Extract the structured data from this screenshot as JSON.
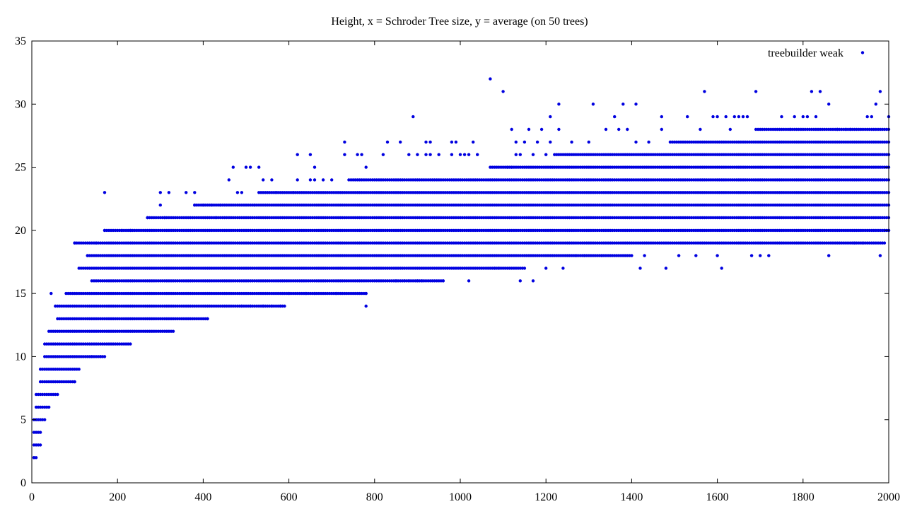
{
  "chart_data": {
    "type": "scatter",
    "title": "Height, x = Schroder Tree size, y = average (on 50 trees)",
    "xlabel": "",
    "ylabel": "",
    "xlim": [
      0,
      2000
    ],
    "ylim": [
      0,
      35
    ],
    "x_ticks": [
      0,
      200,
      400,
      600,
      800,
      1000,
      1200,
      1400,
      1600,
      1800,
      2000
    ],
    "y_ticks": [
      0,
      5,
      10,
      15,
      20,
      25,
      30,
      35
    ],
    "grid": false,
    "legend_position": "top-right",
    "series": [
      {
        "name": "treebuilder weak",
        "color": "#0000e0",
        "bands": [
          {
            "y": 2,
            "x_from": 5,
            "x_to": 10,
            "step": 5
          },
          {
            "y": 3,
            "x_from": 5,
            "x_to": 20,
            "step": 5
          },
          {
            "y": 4,
            "x_from": 5,
            "x_to": 20,
            "step": 5
          },
          {
            "y": 5,
            "x_from": 5,
            "x_to": 30,
            "step": 5
          },
          {
            "y": 6,
            "x_from": 10,
            "x_to": 40,
            "step": 5
          },
          {
            "y": 7,
            "x_from": 10,
            "x_to": 60,
            "step": 5
          },
          {
            "y": 8,
            "x_from": 20,
            "x_to": 100,
            "step": 5
          },
          {
            "y": 9,
            "x_from": 20,
            "x_to": 110,
            "step": 5
          },
          {
            "y": 10,
            "x_from": 30,
            "x_to": 170,
            "step": 5
          },
          {
            "y": 11,
            "x_from": 30,
            "x_to": 230,
            "step": 5
          },
          {
            "y": 12,
            "x_from": 40,
            "x_to": 330,
            "step": 5
          },
          {
            "y": 13,
            "x_from": 60,
            "x_to": 410,
            "step": 5
          },
          {
            "y": 14,
            "x_from": 60,
            "x_to": 590,
            "step": 5
          },
          {
            "y": 15,
            "x_from": 80,
            "x_to": 780,
            "step": 5
          },
          {
            "y": 16,
            "x_from": 140,
            "x_to": 960,
            "step": 5
          },
          {
            "y": 17,
            "x_from": 110,
            "x_to": 1150,
            "step": 5
          },
          {
            "y": 18,
            "x_from": 130,
            "x_to": 1400,
            "step": 5
          },
          {
            "y": 19,
            "x_from": 100,
            "x_to": 1990,
            "step": 5
          },
          {
            "y": 20,
            "x_from": 170,
            "x_to": 2000,
            "step": 5
          },
          {
            "y": 21,
            "x_from": 270,
            "x_to": 2000,
            "step": 5
          },
          {
            "y": 22,
            "x_from": 380,
            "x_to": 2000,
            "step": 5
          },
          {
            "y": 23,
            "x_from": 530,
            "x_to": 2000,
            "step": 5
          },
          {
            "y": 24,
            "x_from": 740,
            "x_to": 2000,
            "step": 5
          },
          {
            "y": 25,
            "x_from": 1070,
            "x_to": 2000,
            "step": 5
          },
          {
            "y": 26,
            "x_from": 1220,
            "x_to": 2000,
            "step": 5
          },
          {
            "y": 27,
            "x_from": 1490,
            "x_to": 2000,
            "step": 5
          },
          {
            "y": 28,
            "x_from": 1690,
            "x_to": 2000,
            "step": 5
          }
        ],
        "scatter": [
          {
            "x": 5,
            "y": 2
          },
          {
            "x": 45,
            "y": 15
          },
          {
            "x": 55,
            "y": 14
          },
          {
            "x": 100,
            "y": 8
          },
          {
            "x": 140,
            "y": 10
          },
          {
            "x": 160,
            "y": 10
          },
          {
            "x": 170,
            "y": 23
          },
          {
            "x": 170,
            "y": 20
          },
          {
            "x": 100,
            "y": 19
          },
          {
            "x": 130,
            "y": 18
          },
          {
            "x": 150,
            "y": 19
          },
          {
            "x": 210,
            "y": 20
          },
          {
            "x": 230,
            "y": 20
          },
          {
            "x": 270,
            "y": 21
          },
          {
            "x": 300,
            "y": 23
          },
          {
            "x": 300,
            "y": 22
          },
          {
            "x": 310,
            "y": 21
          },
          {
            "x": 320,
            "y": 23
          },
          {
            "x": 360,
            "y": 23
          },
          {
            "x": 380,
            "y": 23
          },
          {
            "x": 380,
            "y": 22
          },
          {
            "x": 400,
            "y": 22
          },
          {
            "x": 410,
            "y": 13
          },
          {
            "x": 420,
            "y": 22
          },
          {
            "x": 430,
            "y": 21
          },
          {
            "x": 440,
            "y": 22
          },
          {
            "x": 460,
            "y": 24
          },
          {
            "x": 470,
            "y": 25
          },
          {
            "x": 480,
            "y": 23
          },
          {
            "x": 490,
            "y": 23
          },
          {
            "x": 500,
            "y": 25
          },
          {
            "x": 510,
            "y": 25
          },
          {
            "x": 520,
            "y": 22
          },
          {
            "x": 530,
            "y": 25
          },
          {
            "x": 540,
            "y": 24
          },
          {
            "x": 560,
            "y": 24
          },
          {
            "x": 570,
            "y": 23
          },
          {
            "x": 490,
            "y": 14
          },
          {
            "x": 510,
            "y": 14
          },
          {
            "x": 540,
            "y": 14
          },
          {
            "x": 560,
            "y": 14
          },
          {
            "x": 580,
            "y": 14
          },
          {
            "x": 600,
            "y": 15
          },
          {
            "x": 610,
            "y": 23
          },
          {
            "x": 620,
            "y": 26
          },
          {
            "x": 620,
            "y": 24
          },
          {
            "x": 640,
            "y": 15
          },
          {
            "x": 650,
            "y": 26
          },
          {
            "x": 650,
            "y": 24
          },
          {
            "x": 660,
            "y": 24
          },
          {
            "x": 660,
            "y": 25
          },
          {
            "x": 660,
            "y": 15
          },
          {
            "x": 680,
            "y": 24
          },
          {
            "x": 700,
            "y": 24
          },
          {
            "x": 710,
            "y": 15
          },
          {
            "x": 730,
            "y": 27
          },
          {
            "x": 730,
            "y": 26
          },
          {
            "x": 760,
            "y": 26
          },
          {
            "x": 770,
            "y": 26
          },
          {
            "x": 780,
            "y": 25
          },
          {
            "x": 780,
            "y": 15
          },
          {
            "x": 780,
            "y": 14
          },
          {
            "x": 820,
            "y": 26
          },
          {
            "x": 830,
            "y": 27
          },
          {
            "x": 850,
            "y": 16
          },
          {
            "x": 860,
            "y": 27
          },
          {
            "x": 870,
            "y": 16
          },
          {
            "x": 880,
            "y": 16
          },
          {
            "x": 880,
            "y": 26
          },
          {
            "x": 890,
            "y": 29
          },
          {
            "x": 900,
            "y": 26
          },
          {
            "x": 900,
            "y": 16
          },
          {
            "x": 910,
            "y": 16
          },
          {
            "x": 920,
            "y": 27
          },
          {
            "x": 920,
            "y": 26
          },
          {
            "x": 930,
            "y": 27
          },
          {
            "x": 930,
            "y": 26
          },
          {
            "x": 950,
            "y": 26
          },
          {
            "x": 960,
            "y": 16
          },
          {
            "x": 980,
            "y": 26
          },
          {
            "x": 980,
            "y": 27
          },
          {
            "x": 990,
            "y": 27
          },
          {
            "x": 1000,
            "y": 26
          },
          {
            "x": 1010,
            "y": 26
          },
          {
            "x": 1020,
            "y": 26
          },
          {
            "x": 1020,
            "y": 16
          },
          {
            "x": 1030,
            "y": 27
          },
          {
            "x": 1040,
            "y": 26
          },
          {
            "x": 1070,
            "y": 32
          },
          {
            "x": 1080,
            "y": 17
          },
          {
            "x": 1090,
            "y": 17
          },
          {
            "x": 1100,
            "y": 31
          },
          {
            "x": 1110,
            "y": 25
          },
          {
            "x": 1120,
            "y": 25
          },
          {
            "x": 1120,
            "y": 28
          },
          {
            "x": 1130,
            "y": 27
          },
          {
            "x": 1130,
            "y": 26
          },
          {
            "x": 1140,
            "y": 26
          },
          {
            "x": 1140,
            "y": 16
          },
          {
            "x": 1150,
            "y": 27
          },
          {
            "x": 1160,
            "y": 28
          },
          {
            "x": 1170,
            "y": 26
          },
          {
            "x": 1170,
            "y": 16
          },
          {
            "x": 1180,
            "y": 27
          },
          {
            "x": 1190,
            "y": 28
          },
          {
            "x": 1200,
            "y": 26
          },
          {
            "x": 1200,
            "y": 17
          },
          {
            "x": 1210,
            "y": 29
          },
          {
            "x": 1210,
            "y": 27
          },
          {
            "x": 1230,
            "y": 30
          },
          {
            "x": 1230,
            "y": 28
          },
          {
            "x": 1240,
            "y": 17
          },
          {
            "x": 1260,
            "y": 27
          },
          {
            "x": 1270,
            "y": 18
          },
          {
            "x": 1290,
            "y": 18
          },
          {
            "x": 1300,
            "y": 27
          },
          {
            "x": 1310,
            "y": 30
          },
          {
            "x": 1330,
            "y": 18
          },
          {
            "x": 1340,
            "y": 28
          },
          {
            "x": 1360,
            "y": 29
          },
          {
            "x": 1370,
            "y": 28
          },
          {
            "x": 1380,
            "y": 30
          },
          {
            "x": 1390,
            "y": 28
          },
          {
            "x": 1410,
            "y": 30
          },
          {
            "x": 1410,
            "y": 27
          },
          {
            "x": 1420,
            "y": 17
          },
          {
            "x": 1430,
            "y": 18
          },
          {
            "x": 1440,
            "y": 27
          },
          {
            "x": 1470,
            "y": 29
          },
          {
            "x": 1470,
            "y": 28
          },
          {
            "x": 1480,
            "y": 17
          },
          {
            "x": 1510,
            "y": 18
          },
          {
            "x": 1530,
            "y": 29
          },
          {
            "x": 1550,
            "y": 18
          },
          {
            "x": 1560,
            "y": 28
          },
          {
            "x": 1570,
            "y": 31
          },
          {
            "x": 1590,
            "y": 29
          },
          {
            "x": 1600,
            "y": 29
          },
          {
            "x": 1600,
            "y": 18
          },
          {
            "x": 1610,
            "y": 17
          },
          {
            "x": 1620,
            "y": 29
          },
          {
            "x": 1630,
            "y": 28
          },
          {
            "x": 1640,
            "y": 29
          },
          {
            "x": 1650,
            "y": 29
          },
          {
            "x": 1660,
            "y": 29
          },
          {
            "x": 1670,
            "y": 29
          },
          {
            "x": 1680,
            "y": 18
          },
          {
            "x": 1690,
            "y": 31
          },
          {
            "x": 1700,
            "y": 18
          },
          {
            "x": 1720,
            "y": 18
          },
          {
            "x": 1750,
            "y": 29
          },
          {
            "x": 1770,
            "y": 28
          },
          {
            "x": 1780,
            "y": 29
          },
          {
            "x": 1800,
            "y": 29
          },
          {
            "x": 1810,
            "y": 29
          },
          {
            "x": 1820,
            "y": 31
          },
          {
            "x": 1830,
            "y": 29
          },
          {
            "x": 1840,
            "y": 31
          },
          {
            "x": 1860,
            "y": 30
          },
          {
            "x": 1860,
            "y": 18
          },
          {
            "x": 1880,
            "y": 28
          },
          {
            "x": 1900,
            "y": 28
          },
          {
            "x": 1910,
            "y": 28
          },
          {
            "x": 1920,
            "y": 19
          },
          {
            "x": 1940,
            "y": 19
          },
          {
            "x": 1950,
            "y": 29
          },
          {
            "x": 1960,
            "y": 29
          },
          {
            "x": 1970,
            "y": 30
          },
          {
            "x": 1980,
            "y": 31
          },
          {
            "x": 1980,
            "y": 18
          },
          {
            "x": 1990,
            "y": 20
          },
          {
            "x": 2000,
            "y": 29
          },
          {
            "x": 2000,
            "y": 20
          }
        ]
      }
    ]
  }
}
